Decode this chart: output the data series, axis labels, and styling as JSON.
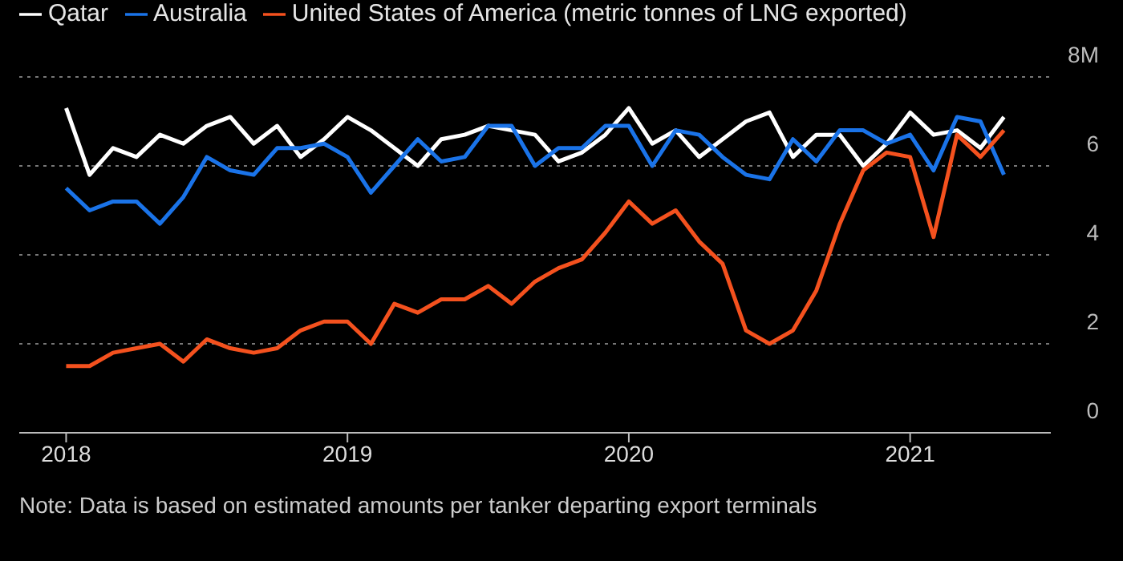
{
  "chart_data": {
    "type": "line",
    "x": [
      "2018-01",
      "2018-02",
      "2018-03",
      "2018-04",
      "2018-05",
      "2018-06",
      "2018-07",
      "2018-08",
      "2018-09",
      "2018-10",
      "2018-11",
      "2018-12",
      "2019-01",
      "2019-02",
      "2019-03",
      "2019-04",
      "2019-05",
      "2019-06",
      "2019-07",
      "2019-08",
      "2019-09",
      "2019-10",
      "2019-11",
      "2019-12",
      "2020-01",
      "2020-02",
      "2020-03",
      "2020-04",
      "2020-05",
      "2020-06",
      "2020-07",
      "2020-08",
      "2020-09",
      "2020-10",
      "2020-11",
      "2020-12",
      "2021-01",
      "2021-02",
      "2021-03",
      "2021-04",
      "2021-05"
    ],
    "series": [
      {
        "name": "Qatar",
        "color": "#ffffff",
        "values": [
          7.3,
          5.8,
          6.4,
          6.2,
          6.7,
          6.5,
          6.9,
          7.1,
          6.5,
          6.9,
          6.2,
          6.6,
          7.1,
          6.8,
          6.4,
          6.0,
          6.6,
          6.7,
          6.9,
          6.8,
          6.7,
          6.1,
          6.3,
          6.7,
          7.3,
          6.5,
          6.8,
          6.2,
          6.6,
          7.0,
          7.2,
          6.2,
          6.7,
          6.7,
          6.0,
          6.5,
          7.2,
          6.7,
          6.8,
          6.4,
          7.1
        ]
      },
      {
        "name": "Australia",
        "color": "#1a73e8",
        "values": [
          5.5,
          5.0,
          5.2,
          5.2,
          4.7,
          5.3,
          6.2,
          5.9,
          5.8,
          6.4,
          6.4,
          6.5,
          6.2,
          5.4,
          6.0,
          6.6,
          6.1,
          6.2,
          6.9,
          6.9,
          6.0,
          6.4,
          6.4,
          6.9,
          6.9,
          6.0,
          6.8,
          6.7,
          6.2,
          5.8,
          5.7,
          6.6,
          6.1,
          6.8,
          6.8,
          6.5,
          6.7,
          5.9,
          7.1,
          7.0,
          5.8
        ]
      },
      {
        "name": "United States of America (metric tonnes of LNG exported)",
        "color": "#f4511e",
        "values": [
          1.5,
          1.5,
          1.8,
          1.9,
          2.0,
          1.6,
          2.1,
          1.9,
          1.8,
          1.9,
          2.3,
          2.5,
          2.5,
          2.0,
          2.9,
          2.7,
          3.0,
          3.0,
          3.3,
          2.9,
          3.4,
          3.7,
          3.9,
          4.5,
          5.2,
          4.7,
          5.0,
          4.3,
          3.8,
          2.3,
          2.0,
          2.3,
          3.2,
          4.7,
          5.9,
          6.3,
          6.2,
          4.4,
          6.7,
          6.2,
          6.8
        ]
      }
    ],
    "xlim": [
      "2017-11",
      "2021-07"
    ],
    "xticks": [
      {
        "value": "2018-01",
        "label": "2018"
      },
      {
        "value": "2019-01",
        "label": "2019"
      },
      {
        "value": "2020-01",
        "label": "2020"
      },
      {
        "value": "2021-01",
        "label": "2021"
      }
    ],
    "ylim": [
      0,
      8
    ],
    "yticks": [
      0,
      2,
      4,
      6,
      {
        "value": 8,
        "label": "8M"
      }
    ],
    "grid": "y",
    "legend": "top left",
    "line_style": "solid",
    "annotations": [
      "Note: Data is based on estimated amounts per tanker departing export terminals"
    ]
  }
}
